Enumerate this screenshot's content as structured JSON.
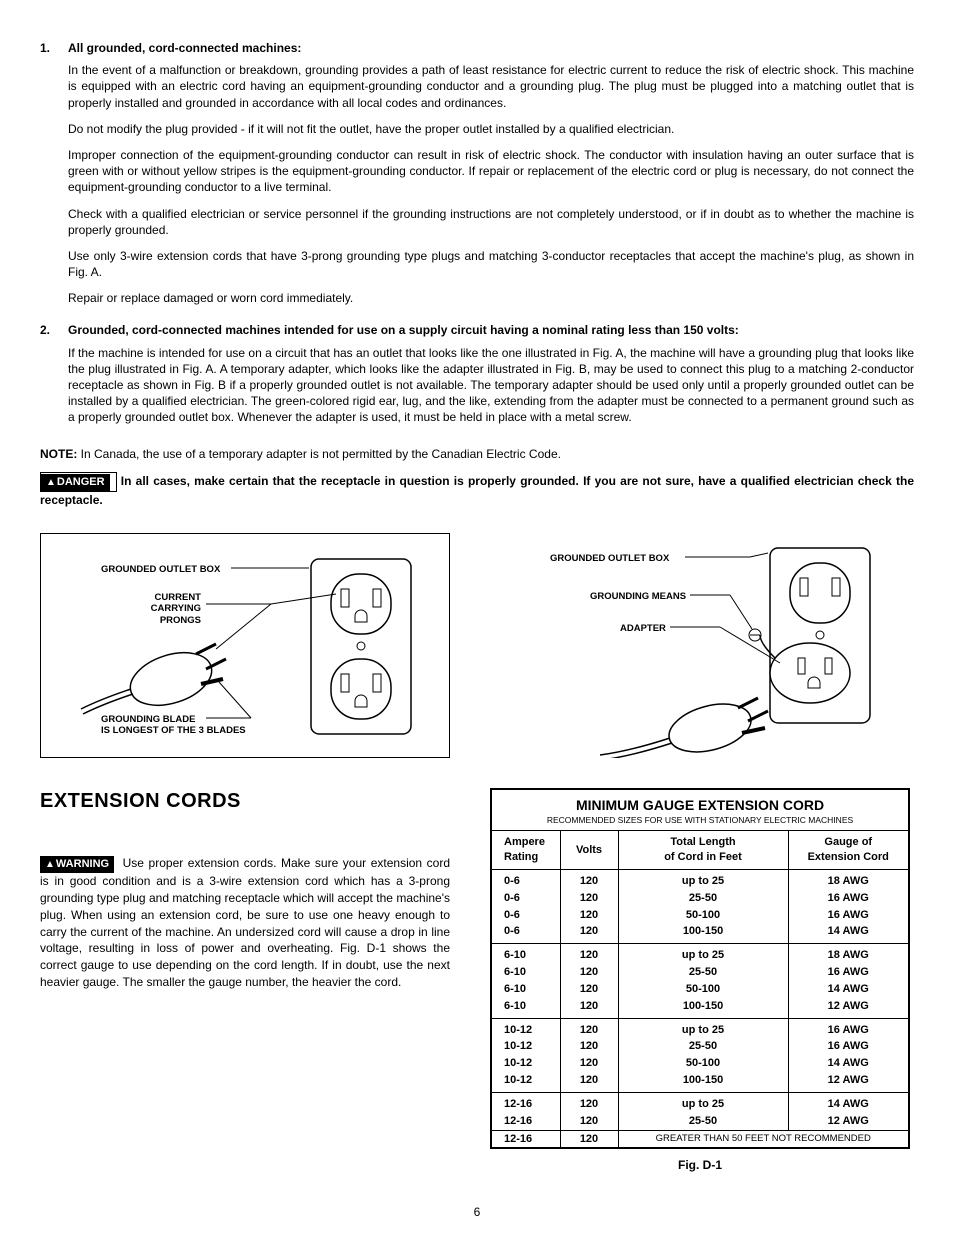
{
  "section1": {
    "num": "1.",
    "heading": "All grounded, cord-connected machines:",
    "paras": [
      "In the event of a malfunction or breakdown, grounding provides a path of least resistance for electric current to reduce the risk of electric shock. This machine is equipped with an electric cord having an equipment-grounding conductor and a grounding plug. The plug must be plugged into a matching outlet that is properly installed and grounded in accordance with all local codes and ordinances.",
      "Do not modify the plug provided - if it will not fit the outlet, have the proper outlet installed by a qualified electrician.",
      "Improper connection of the equipment-grounding conductor can result in risk of electric shock. The conductor with insulation having an outer surface that is green with or without yellow stripes is the equipment-grounding conductor. If repair or replacement of the electric cord or plug is necessary, do not connect the equipment-grounding conductor to a live terminal.",
      "Check with a qualified electrician or service personnel if the grounding instructions are not completely understood, or if in doubt as to whether the machine is properly grounded.",
      "Use only 3-wire extension cords that have 3-prong grounding type plugs and matching 3-conductor receptacles that accept the machine's plug, as shown in Fig. A.",
      "Repair or replace damaged or worn cord immediately."
    ]
  },
  "section2": {
    "num": "2.",
    "heading": "Grounded, cord-connected machines intended for use on a supply circuit having a nominal rating less than 150 volts:",
    "para": "If the machine is intended for use on a circuit that has an outlet that looks like the one illustrated in Fig. A, the machine will have a grounding plug that looks like the plug illustrated in Fig. A. A temporary adapter, which looks like the adapter illustrated in Fig. B, may be used to connect this plug to a matching 2-conductor receptacle as shown in Fig. B if a properly grounded outlet is not available. The temporary adapter should be used only until a properly grounded outlet can be installed by a qualified electrician. The green-colored rigid ear, lug, and the like, extending from the adapter must be connected to a permanent ground such as a properly grounded outlet box. Whenever the adapter is used, it must be held in place with a metal screw."
  },
  "note": {
    "label": "NOTE:",
    "text": " In Canada, the use of a temporary adapter is not permitted by the Canadian Electric Code."
  },
  "danger": {
    "badge": "DANGER",
    "text": " In all cases, make certain that the receptacle in question is properly grounded. If you are not sure, have a qualified electrician check the receptacle."
  },
  "figA": {
    "label1": "GROUNDED OUTLET BOX",
    "label2a": "CURRENT",
    "label2b": "CARRYING",
    "label2c": "PRONGS",
    "label3a": "GROUNDING BLADE",
    "label3b": "IS LONGEST OF THE 3 BLADES"
  },
  "figB": {
    "label1": "GROUNDED OUTLET BOX",
    "label2": "GROUNDING MEANS",
    "label3": "ADAPTER"
  },
  "ext": {
    "heading": "EXTENSION CORDS",
    "warn_badge": "WARNING",
    "para": " Use proper extension cords. Make sure your extension cord is in good condition and is a 3-wire extension cord which has a 3-prong grounding type plug and matching receptacle which will accept the machine's plug. When using an extension cord, be sure to use one heavy enough to carry the current of the machine. An undersized cord will cause a drop in line voltage, resulting in loss of power and overheating. Fig. D-1 shows the correct gauge to use depending on the cord length. If in doubt, use the next heavier gauge. The smaller the gauge number, the heavier the cord."
  },
  "table": {
    "title": "MINIMUM GAUGE EXTENSION CORD",
    "subtitle": "RECOMMENDED SIZES FOR USE WITH STATIONARY ELECTRIC MACHINES",
    "headers": {
      "amp1": "Ampere",
      "amp2": "Rating",
      "volt": "Volts",
      "len1": "Total Length",
      "len2": "of Cord in Feet",
      "gauge1": "Gauge of",
      "gauge2": "Extension Cord"
    },
    "groups": [
      {
        "rows": [
          {
            "amp": "0-6",
            "volt": "120",
            "len": "up to 25",
            "gauge": "18 AWG"
          },
          {
            "amp": "0-6",
            "volt": "120",
            "len": "25-50",
            "gauge": "16 AWG"
          },
          {
            "amp": "0-6",
            "volt": "120",
            "len": "50-100",
            "gauge": "16 AWG"
          },
          {
            "amp": "0-6",
            "volt": "120",
            "len": "100-150",
            "gauge": "14 AWG"
          }
        ]
      },
      {
        "rows": [
          {
            "amp": "6-10",
            "volt": "120",
            "len": "up to 25",
            "gauge": "18 AWG"
          },
          {
            "amp": "6-10",
            "volt": "120",
            "len": "25-50",
            "gauge": "16 AWG"
          },
          {
            "amp": "6-10",
            "volt": "120",
            "len": "50-100",
            "gauge": "14 AWG"
          },
          {
            "amp": "6-10",
            "volt": "120",
            "len": "100-150",
            "gauge": "12 AWG"
          }
        ]
      },
      {
        "rows": [
          {
            "amp": "10-12",
            "volt": "120",
            "len": "up to 25",
            "gauge": "16 AWG"
          },
          {
            "amp": "10-12",
            "volt": "120",
            "len": "25-50",
            "gauge": "16 AWG"
          },
          {
            "amp": "10-12",
            "volt": "120",
            "len": "50-100",
            "gauge": "14 AWG"
          },
          {
            "amp": "10-12",
            "volt": "120",
            "len": "100-150",
            "gauge": "12 AWG"
          }
        ]
      },
      {
        "rows": [
          {
            "amp": "12-16",
            "volt": "120",
            "len": "up to 25",
            "gauge": "14 AWG"
          },
          {
            "amp": "12-16",
            "volt": "120",
            "len": "25-50",
            "gauge": "12 AWG"
          }
        ],
        "note_row": {
          "amp": "12-16",
          "volt": "120",
          "note": "GREATER THAN 50 FEET NOT RECOMMENDED"
        }
      }
    ],
    "caption": "Fig. D-1"
  },
  "page": "6"
}
